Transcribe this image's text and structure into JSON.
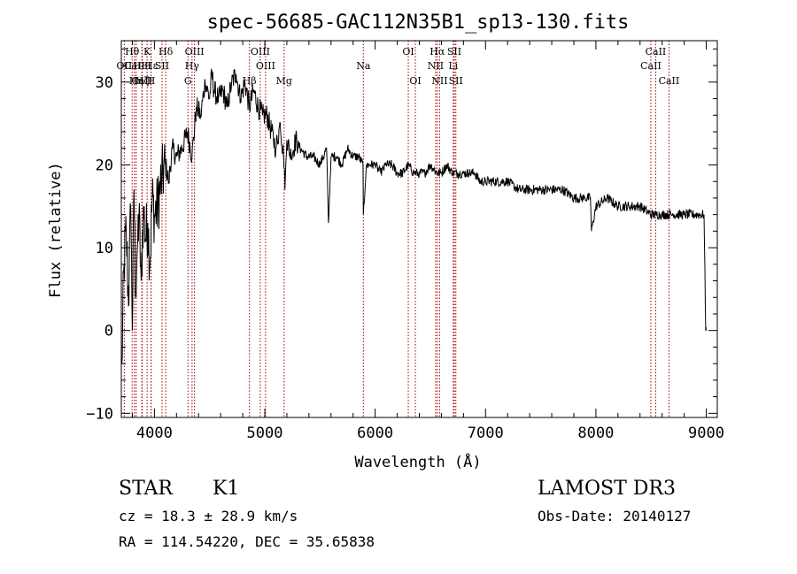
{
  "chart_data": {
    "type": "line",
    "title": "spec-56685-GAC112N35B1_sp13-130.fits",
    "xlabel": "Wavelength (Å)",
    "ylabel": "Flux (relative)",
    "xlim": [
      3700,
      9100
    ],
    "ylim": [
      -10.5,
      35
    ],
    "x_ticks": [
      4000,
      5000,
      6000,
      7000,
      8000,
      9000
    ],
    "x_tick_labels": [
      "4000",
      "5000",
      "6000",
      "7000",
      "8000",
      "9000"
    ],
    "y_ticks": [
      -10,
      0,
      10,
      20,
      30
    ],
    "y_tick_labels": [
      "−10",
      "0",
      "10",
      "20",
      "30"
    ],
    "series": [
      {
        "name": "flux",
        "x": [
          3705,
          3725,
          3745,
          3765,
          3785,
          3800,
          3815,
          3830,
          3845,
          3860,
          3880,
          3900,
          3920,
          3940,
          3960,
          3980,
          4000,
          4030,
          4060,
          4100,
          4130,
          4160,
          4200,
          4250,
          4300,
          4340,
          4380,
          4420,
          4460,
          4500,
          4520,
          4540,
          4580,
          4620,
          4660,
          4700,
          4740,
          4780,
          4820,
          4860,
          4900,
          4940,
          4980,
          5020,
          5060,
          5100,
          5140,
          5170,
          5183,
          5200,
          5240,
          5280,
          5320,
          5380,
          5440,
          5500,
          5560,
          5577,
          5600,
          5650,
          5700,
          5750,
          5800,
          5850,
          5890,
          5893,
          5920,
          5960,
          6000,
          6050,
          6100,
          6150,
          6200,
          6250,
          6300,
          6350,
          6400,
          6450,
          6500,
          6562,
          6600,
          6650,
          6700,
          6750,
          6800,
          6850,
          6900,
          6950,
          7000,
          7100,
          7200,
          7300,
          7400,
          7500,
          7600,
          7700,
          7800,
          7900,
          7950,
          7960,
          8000,
          8100,
          8200,
          8300,
          8400,
          8500,
          8542,
          8600,
          8662,
          8700,
          8800,
          8900,
          8980,
          8995,
          9000
        ],
        "y": [
          -4,
          8,
          12,
          3,
          15,
          0,
          17,
          4,
          10,
          14,
          6,
          15,
          11,
          13,
          8,
          16,
          14,
          15,
          18,
          20,
          18,
          22,
          21,
          22,
          24,
          21,
          27,
          26,
          30,
          28,
          31,
          29,
          28,
          29,
          27,
          30,
          31,
          28,
          30,
          27,
          29,
          27,
          26,
          26,
          24,
          22,
          25,
          21,
          17,
          23,
          21,
          23,
          22,
          21,
          21,
          20,
          22,
          13,
          21,
          21,
          20,
          22,
          21,
          21,
          20,
          14,
          20,
          20,
          20,
          19,
          20,
          20,
          19,
          19,
          20,
          19,
          19,
          19,
          20,
          19,
          19,
          20,
          19,
          19,
          19,
          19,
          19,
          18,
          18,
          18,
          18,
          17,
          17,
          17,
          17,
          17,
          16,
          16,
          16,
          12,
          15,
          16,
          15,
          15,
          15,
          14,
          14,
          14,
          14,
          14,
          14,
          14,
          14,
          0,
          0
        ]
      }
    ],
    "line_markers": [
      {
        "name": "Hθ",
        "wavelength": 3798,
        "row": 1
      },
      {
        "name": "CaII",
        "wavelength": 3819,
        "row": 2
      },
      {
        "name": "OII",
        "wavelength": 3727,
        "row": 2
      },
      {
        "name": "Hη",
        "wavelength": 3835,
        "row": 3
      },
      {
        "name": "CaII",
        "wavelength": 3886,
        "row": 3
      },
      {
        "name": "K",
        "wavelength": 3934,
        "row": 1
      },
      {
        "name": "Hζ",
        "wavelength": 3889,
        "row": 3
      },
      {
        "name": "Hε",
        "wavelength": 3970,
        "row": 2
      },
      {
        "name": "HeI",
        "wavelength": 3889,
        "row": 2
      },
      {
        "name": "SII",
        "wavelength": 4069,
        "row": 2
      },
      {
        "name": "H",
        "wavelength": 3969,
        "row": 3
      },
      {
        "name": "Hδ",
        "wavelength": 4102,
        "row": 1
      },
      {
        "name": "OIII",
        "wavelength": 4363,
        "row": 1
      },
      {
        "name": "Hγ",
        "wavelength": 4341,
        "row": 2
      },
      {
        "name": "G",
        "wavelength": 4304,
        "row": 3
      },
      {
        "name": "Hβ",
        "wavelength": 4861,
        "row": 3
      },
      {
        "name": "OIII",
        "wavelength": 4959,
        "row": 1
      },
      {
        "name": "OIII",
        "wavelength": 5007,
        "row": 2
      },
      {
        "name": "Mg",
        "wavelength": 5175,
        "row": 3
      },
      {
        "name": "Na",
        "wavelength": 5893,
        "row": 2
      },
      {
        "name": "OI",
        "wavelength": 6300,
        "row": 1
      },
      {
        "name": "OI",
        "wavelength": 6364,
        "row": 3
      },
      {
        "name": "Hα",
        "wavelength": 6563,
        "row": 1
      },
      {
        "name": "NII",
        "wavelength": 6548,
        "row": 2
      },
      {
        "name": "NII",
        "wavelength": 6584,
        "row": 3
      },
      {
        "name": "SII",
        "wavelength": 6717,
        "row": 1
      },
      {
        "name": "Li",
        "wavelength": 6708,
        "row": 2
      },
      {
        "name": "SII",
        "wavelength": 6731,
        "row": 3
      },
      {
        "name": "CaII",
        "wavelength": 8542,
        "row": 1
      },
      {
        "name": "CaII",
        "wavelength": 8498,
        "row": 2
      },
      {
        "name": "CaII",
        "wavelength": 8662,
        "row": 3
      }
    ],
    "marker_color": "#a00000",
    "line_color": "#000000"
  },
  "info": {
    "class": "STAR",
    "subclass": "K1",
    "survey": "LAMOST DR3",
    "cz": "cz = 18.3 ± 28.9 km/s",
    "obs_date": "Obs-Date: 20140127",
    "coords": "RA = 114.54220, DEC =  35.65838"
  }
}
